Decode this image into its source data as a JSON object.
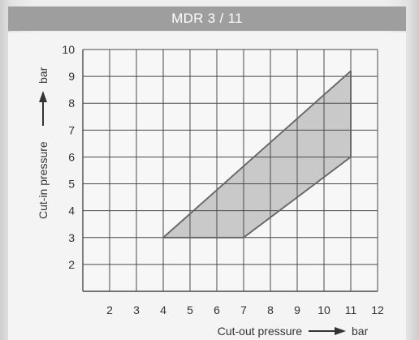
{
  "title": "MDR 3 / 11",
  "chart_data": {
    "type": "area",
    "title": "MDR 3 / 11",
    "xlabel": "Cut-out pressure",
    "xunit": "bar",
    "ylabel": "Cut-in pressure",
    "yunit": "bar",
    "xlim": [
      1,
      12
    ],
    "ylim": [
      1,
      10
    ],
    "x_ticks": [
      2,
      3,
      4,
      5,
      6,
      7,
      8,
      9,
      10,
      11,
      12
    ],
    "y_ticks": [
      2,
      3,
      4,
      5,
      6,
      7,
      8,
      9,
      10
    ],
    "grid": true,
    "region": {
      "points": [
        {
          "x": 4,
          "y": 3
        },
        {
          "x": 7,
          "y": 3
        },
        {
          "x": 11,
          "y": 6
        },
        {
          "x": 11,
          "y": 9.2
        }
      ]
    }
  },
  "colors": {
    "region_fill": "#c9c9c9",
    "region_stroke": "#666666",
    "grid": "#4a4a4a",
    "title_bar": "#9e9e9e"
  }
}
